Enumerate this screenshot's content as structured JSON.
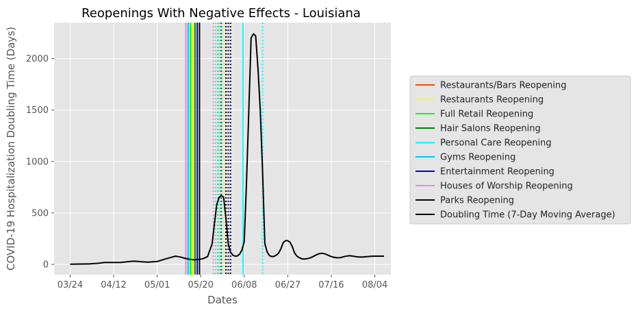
{
  "chart_data": {
    "type": "line",
    "title": "Reopenings With Negative Effects - Louisiana",
    "xlabel": "Dates",
    "ylabel": "COVID-19 Hospitalization Doubling Time (Days)",
    "x_tick_labels": [
      "03/24",
      "04/12",
      "05/01",
      "05/20",
      "06/08",
      "06/27",
      "07/16",
      "08/04"
    ],
    "x_tick_days": [
      0,
      19,
      38,
      57,
      76,
      95,
      114,
      133
    ],
    "y_ticks": [
      0,
      500,
      1000,
      1500,
      2000
    ],
    "xlim_days": [
      -7,
      140
    ],
    "ylim": [
      -100,
      2350
    ],
    "grid": true,
    "legend_position": "right",
    "series": [
      {
        "name": "Doubling Time (7-Day Moving Average)",
        "color": "#000000",
        "x_days": [
          0,
          4,
          8,
          12,
          15,
          19,
          22,
          25,
          28,
          31,
          34,
          38,
          42,
          46,
          48,
          50,
          52,
          54,
          56,
          58,
          60,
          62,
          63,
          64,
          65,
          66,
          67,
          68,
          69,
          70,
          71,
          72,
          73,
          74,
          75,
          76,
          77,
          78,
          79,
          80,
          81,
          82,
          83,
          84,
          85,
          86,
          87,
          88,
          89,
          90,
          91,
          92,
          93,
          94,
          95,
          96,
          97,
          98,
          99,
          100,
          101,
          102,
          103,
          104,
          105,
          106,
          107,
          108,
          109,
          110,
          111,
          112,
          113,
          114,
          115,
          116,
          117,
          118,
          119,
          120,
          121,
          122,
          123,
          124,
          125,
          126,
          127,
          128,
          129,
          130,
          131,
          132,
          133,
          134,
          135,
          136,
          137
        ],
        "values": [
          2,
          3,
          4,
          10,
          18,
          18,
          18,
          26,
          32,
          26,
          22,
          28,
          55,
          80,
          72,
          60,
          50,
          45,
          48,
          55,
          75,
          200,
          400,
          580,
          650,
          670,
          650,
          450,
          200,
          120,
          90,
          80,
          82,
          100,
          140,
          220,
          800,
          1500,
          2200,
          2240,
          2220,
          1900,
          1500,
          900,
          200,
          120,
          85,
          75,
          78,
          90,
          110,
          150,
          210,
          230,
          230,
          215,
          170,
          110,
          80,
          65,
          55,
          52,
          54,
          58,
          65,
          75,
          88,
          98,
          105,
          108,
          104,
          95,
          85,
          75,
          70,
          66,
          64,
          66,
          72,
          78,
          82,
          84,
          82,
          78,
          74,
          72,
          71,
          72,
          74,
          76,
          78,
          79,
          80,
          80,
          80,
          80,
          80
        ]
      }
    ],
    "reopenings": [
      {
        "name": "Restaurants/Bars Reopening",
        "color": "#ff4500",
        "solid_day": null,
        "dotted_days": []
      },
      {
        "name": "Restaurants Reopening",
        "color": "#ffff00",
        "solid_day": 53.5,
        "dotted_days": [
          67
        ]
      },
      {
        "name": "Full Retail Reopening",
        "color": "#00ff00",
        "solid_day": 52.5,
        "dotted_days": [
          64.5
        ]
      },
      {
        "name": "Hair Salons Reopening",
        "color": "#008000",
        "solid_day": 54.5,
        "dotted_days": [
          66
        ]
      },
      {
        "name": "Personal Care Reopening",
        "color": "#00ffff",
        "solid_day": 75.5,
        "dotted_days": [
          63.5,
          84
        ]
      },
      {
        "name": "Gyms Reopening",
        "color": "#00bfff",
        "solid_day": 51.5,
        "dotted_days": [
          65.5
        ]
      },
      {
        "name": "Entertainment Reopening",
        "color": "#0000cd",
        "solid_day": 55.5,
        "dotted_days": [
          69
        ]
      },
      {
        "name": "Houses of Worship Reopening",
        "color": "#ee82ee",
        "solid_day": 50.5,
        "dotted_days": [
          62.5
        ]
      },
      {
        "name": "Parks Reopening",
        "color": "#000000",
        "solid_day": 56.5,
        "dotted_days": [
          68,
          70
        ]
      }
    ]
  }
}
